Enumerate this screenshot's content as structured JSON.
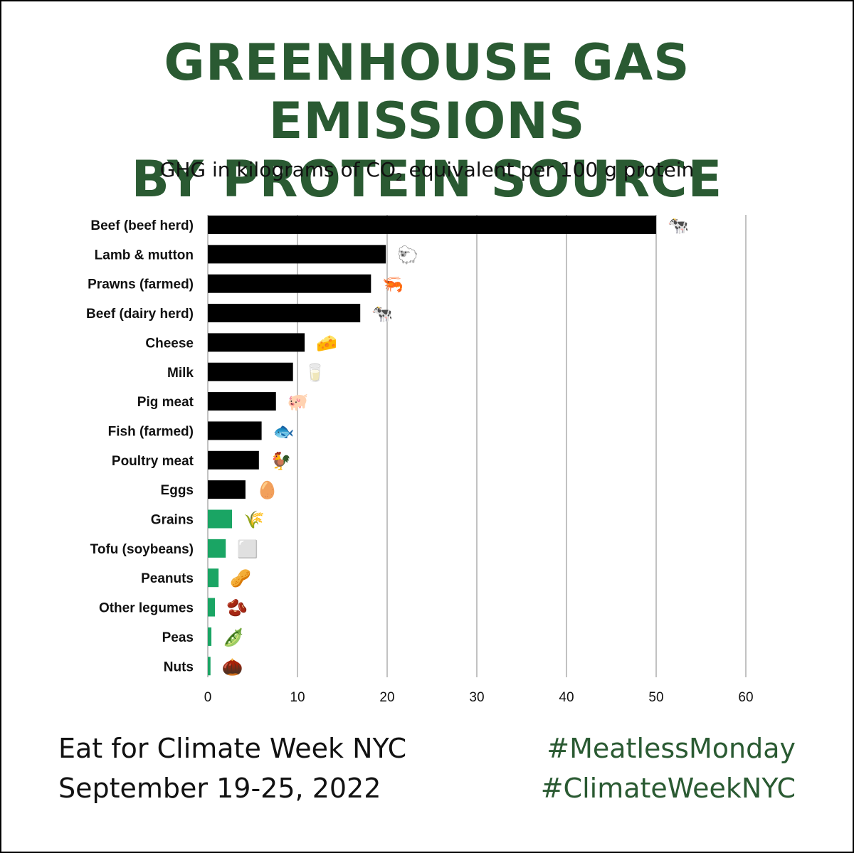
{
  "colors": {
    "title": "#2a5a32",
    "bar_animal": "#000000",
    "bar_plant": "#1aa564",
    "grid": "#9a9a9a",
    "hashtag": "#2a5a32"
  },
  "header": {
    "title_line1": "GREENHOUSE GAS EMISSIONS",
    "title_line2": "BY PROTEIN SOURCE",
    "subtitle_pre": "GHG in kilograms of CO",
    "subtitle_sub": "2",
    "subtitle_post": " equivalent per 100 g protein"
  },
  "chart_data": {
    "type": "bar",
    "orientation": "horizontal",
    "categories": [
      "Beef (beef herd)",
      "Lamb & mutton",
      "Prawns (farmed)",
      "Beef (dairy herd)",
      "Cheese",
      "Milk",
      "Pig meat",
      "Fish (farmed)",
      "Poultry meat",
      "Eggs",
      "Grains",
      "Tofu (soybeans)",
      "Peanuts",
      "Other legumes",
      "Peas",
      "Nuts"
    ],
    "values": [
      50,
      19.85,
      18.2,
      17,
      10.8,
      9.5,
      7.6,
      6,
      5.7,
      4.2,
      2.7,
      2,
      1.2,
      0.8,
      0.4,
      0.3
    ],
    "groups": [
      "animal",
      "animal",
      "animal",
      "animal",
      "animal",
      "animal",
      "animal",
      "animal",
      "animal",
      "animal",
      "plant",
      "plant",
      "plant",
      "plant",
      "plant",
      "plant"
    ],
    "icons": [
      "cow-icon",
      "sheep-icon",
      "shrimp-icon",
      "dairy-cow-icon",
      "cheese-icon",
      "milk-glass-icon",
      "pig-icon",
      "fish-icon",
      "chicken-icon",
      "egg-icon",
      "rice-icon",
      "tofu-icon",
      "peanut-icon",
      "bean-icon",
      "pea-pod-icon",
      "chestnut-icon"
    ],
    "icon_glyphs": [
      "🐄",
      "🐑",
      "🦐",
      "🐄",
      "🧀",
      "🥛",
      "🐖",
      "🐟",
      "🐓",
      "🥚",
      "🌾",
      "⬜",
      "🥜",
      "🫘",
      "🫛",
      "🌰"
    ],
    "ticks": [
      "0",
      "10",
      "20",
      "30",
      "40",
      "50",
      "60"
    ],
    "xlim": [
      0,
      60
    ],
    "grid": "vertical"
  },
  "footer": {
    "event_line1": "Eat for Climate Week NYC",
    "event_line2": "September 19-25, 2022",
    "hashtag1": "#MeatlessMonday",
    "hashtag2": "#ClimateWeekNYC"
  }
}
